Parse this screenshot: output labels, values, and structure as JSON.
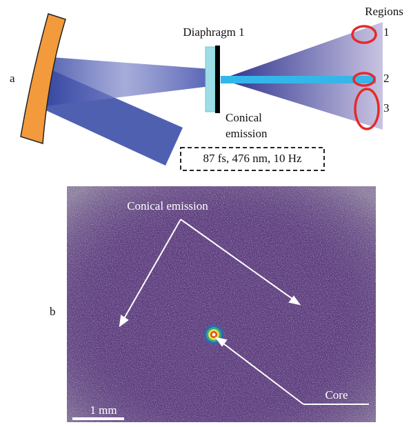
{
  "panel_a": {
    "label": "a",
    "regions_title": "Regions",
    "regions": [
      "1",
      "2",
      "3"
    ],
    "diaphragm": "Diaphragm 1",
    "emission_lines": [
      "Conical",
      "emission"
    ],
    "pulse": "87 fs, 476 nm, 10 Hz"
  },
  "panel_b": {
    "label": "b",
    "emission": "Conical emission",
    "core": "Core",
    "scale": "1 mm"
  }
}
